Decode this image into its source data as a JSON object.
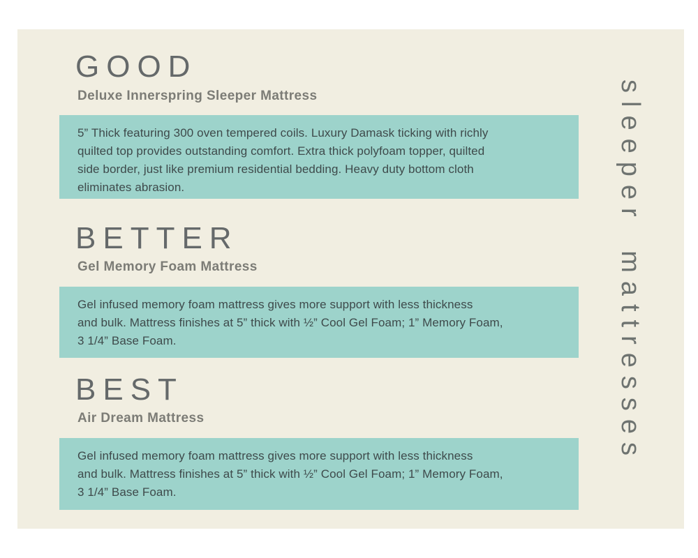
{
  "document": {
    "side_label": "sleeper mattresses",
    "colors": {
      "page_background": "#ffffff",
      "card_background": "#f1eee1",
      "highlight_box": "#9dd3cb",
      "heading_text": "#65696a",
      "subtitle_text": "#7c7c76",
      "body_text": "#3e4a4b"
    },
    "sections": [
      {
        "tier": "GOOD",
        "product": "Deluxe Innerspring Sleeper Mattress",
        "description": "5” Thick featuring 300 oven tempered coils.  Luxury Damask ticking with richly\nquilted top provides outstanding comfort.  Extra thick polyfoam topper, quilted\nside border, just like premium residential bedding.  Heavy duty bottom cloth\neliminates abrasion."
      },
      {
        "tier": "BETTER",
        "product": "Gel Memory Foam Mattress",
        "description": "Gel infused memory foam mattress gives more support with less thickness\nand bulk.  Mattress finishes at 5” thick with ½” Cool Gel Foam; 1” Memory Foam,\n3 1/4” Base Foam."
      },
      {
        "tier": "BEST",
        "product": "Air Dream Mattress",
        "description": "Gel infused memory foam mattress gives more support with less thickness\nand bulk.  Mattress finishes at 5” thick with ½” Cool Gel Foam; 1” Memory Foam,\n3 1/4” Base Foam."
      }
    ]
  }
}
